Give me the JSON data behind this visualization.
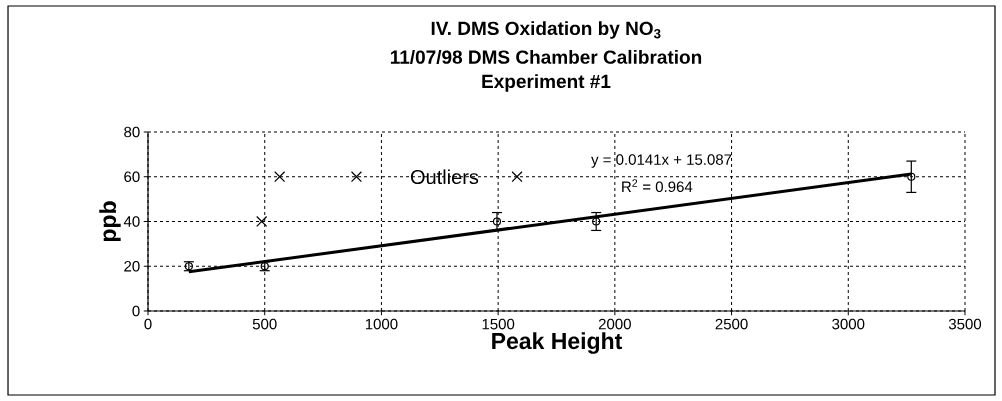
{
  "chart_data": {
    "type": "scatter",
    "title": "IV. DMS Oxidation by NO$_{3}$",
    "subtitle": "11/07/98 DMS Chamber Calibration",
    "xlabel": "Peak Height",
    "ylabel": "ppb",
    "annotations": [
      "Experiment #1",
      "y = 0.0141x + 15.087",
      "R$^{2}$ = 0.964",
      "Outliers"
    ],
    "xlim": [
      0,
      3500
    ],
    "ylim": [
      0,
      80
    ],
    "xticks": [
      0,
      500,
      1000,
      1500,
      2000,
      2500,
      3000,
      3500
    ],
    "yticks": [
      0,
      20,
      40,
      60,
      80
    ],
    "grid": true,
    "series": [
      {
        "marker": "circle",
        "color": "#000000",
        "x": [
          175,
          500,
          1495,
          1920,
          3270
        ],
        "values": [
          20,
          20,
          40,
          40,
          60
        ],
        "errors": [
          2,
          2,
          4,
          4,
          7
        ]
      },
      {
        "marker": "cross",
        "color": "#000000",
        "x": [
          487,
          564,
          893,
          1581
        ],
        "values": [
          40,
          60,
          60,
          60
        ]
      },
      {
        "type": "line",
        "marker": "none",
        "line_style": "solid",
        "color": "#000000",
        "x": [
          175,
          3270
        ],
        "values": [
          17.5,
          61.2
        ]
      }
    ]
  }
}
